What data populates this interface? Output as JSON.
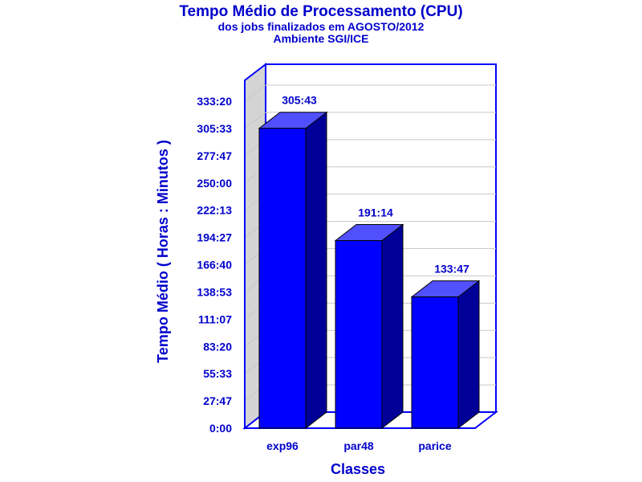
{
  "chart_data": {
    "type": "bar",
    "title": "Tempo Médio de Processamento (CPU)",
    "subtitle_lines": [
      "dos jobs finalizados em AGOSTO/2012",
      "Ambiente SGI/ICE"
    ],
    "xlabel": "Classes",
    "ylabel": "Tempo Médio ( Horas : Minutos )",
    "categories": [
      "exp96",
      "par48",
      "parice"
    ],
    "values": [
      18343,
      11474,
      8027
    ],
    "value_labels": [
      "305:43",
      "191:14",
      "133:47"
    ],
    "y_ticks": [
      0,
      1667,
      3333,
      5000,
      6667,
      8333,
      10000,
      11667,
      13333,
      15000,
      16667,
      18333,
      20000
    ],
    "y_tick_labels": [
      "0:00",
      "27:47",
      "55:33",
      "83:20",
      "111:07",
      "138:53",
      "166:40",
      "194:27",
      "222:13",
      "250:00",
      "277:47",
      "305:33",
      "333:20"
    ],
    "ylim": [
      0,
      20000
    ],
    "value_unit": "minutes",
    "grid": true,
    "colors": {
      "bar_front": "#0000ff",
      "bar_side": "#000099",
      "bar_top": "#5050ff",
      "frame": "#0000ff",
      "text": "#0000cc",
      "left_wall": "#d4d4d4",
      "grid": "#c8c8c8"
    }
  }
}
